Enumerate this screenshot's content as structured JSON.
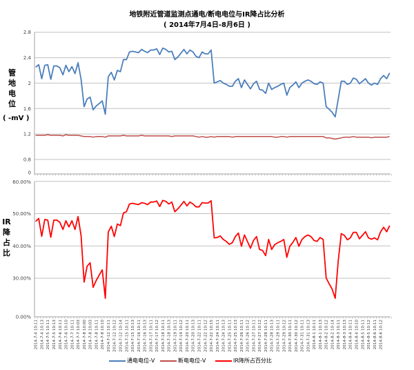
{
  "title": "地铁附近管道监测点通电/断电电位与IR降占比分析",
  "subtitle": "( 2014年7月4日-8月6日 )",
  "colors": {
    "on": "#4a7ebb",
    "off": "#be4b48",
    "ir": "#ff0000",
    "grid": "#c0c0c0"
  },
  "chart_data": [
    {
      "type": "line",
      "ylabel_main": "管地电位",
      "ylabel_unit": "( -mV )",
      "yticks": [
        "2.8",
        "2.4",
        "2",
        "1.6",
        "1.2",
        "0.8",
        "0"
      ],
      "ylim": [
        0,
        2.8
      ],
      "grid": true,
      "series": [
        {
          "name": "通电电位-V",
          "values": [
            2.25,
            2.29,
            2.07,
            2.28,
            2.29,
            2.06,
            2.27,
            2.27,
            2.24,
            2.13,
            2.28,
            2.18,
            2.26,
            2.15,
            2.32,
            2.06,
            1.63,
            1.75,
            1.78,
            1.58,
            1.64,
            1.68,
            1.72,
            1.51,
            2.1,
            2.17,
            2.05,
            2.2,
            2.18,
            2.37,
            2.37,
            2.49,
            2.5,
            2.49,
            2.48,
            2.53,
            2.5,
            2.48,
            2.52,
            2.52,
            2.54,
            2.45,
            2.55,
            2.53,
            2.49,
            2.5,
            2.37,
            2.41,
            2.47,
            2.53,
            2.46,
            2.52,
            2.49,
            2.42,
            2.4,
            2.49,
            2.46,
            2.46,
            2.52,
            2.0,
            2.02,
            2.04,
            2.0,
            1.98,
            1.95,
            1.95,
            2.03,
            2.07,
            1.93,
            2.05,
            1.98,
            1.91,
            1.99,
            2.03,
            1.9,
            1.89,
            1.84,
            2.0,
            1.9,
            1.93,
            1.95,
            1.98,
            2.0,
            1.81,
            1.93,
            1.97,
            2.02,
            1.93,
            2.0,
            2.03,
            2.05,
            2.03,
            1.99,
            1.98,
            2.02,
            2.0,
            1.63,
            1.59,
            1.54,
            1.47,
            1.75,
            2.03,
            2.03,
            1.98,
            2.0,
            2.08,
            2.06,
            1.99,
            2.03,
            2.07,
            2.0,
            1.97,
            2.0,
            1.98,
            2.07,
            2.12,
            2.07,
            2.16
          ]
        },
        {
          "name": "断电电位-V",
          "values": [
            1.18,
            1.18,
            1.18,
            1.18,
            1.19,
            1.18,
            1.18,
            1.18,
            1.18,
            1.17,
            1.19,
            1.18,
            1.18,
            1.18,
            1.18,
            1.17,
            1.16,
            1.16,
            1.16,
            1.15,
            1.16,
            1.16,
            1.16,
            1.15,
            1.17,
            1.17,
            1.17,
            1.17,
            1.17,
            1.18,
            1.17,
            1.17,
            1.17,
            1.17,
            1.17,
            1.18,
            1.17,
            1.17,
            1.17,
            1.17,
            1.17,
            1.17,
            1.17,
            1.17,
            1.17,
            1.16,
            1.17,
            1.17,
            1.17,
            1.17,
            1.17,
            1.17,
            1.17,
            1.16,
            1.15,
            1.16,
            1.15,
            1.15,
            1.16,
            1.15,
            1.16,
            1.16,
            1.16,
            1.16,
            1.16,
            1.15,
            1.16,
            1.16,
            1.16,
            1.16,
            1.16,
            1.16,
            1.16,
            1.16,
            1.16,
            1.16,
            1.16,
            1.16,
            1.16,
            1.15,
            1.15,
            1.16,
            1.16,
            1.15,
            1.16,
            1.16,
            1.16,
            1.16,
            1.16,
            1.16,
            1.16,
            1.16,
            1.16,
            1.16,
            1.16,
            1.16,
            1.14,
            1.14,
            1.13,
            1.12,
            1.13,
            1.14,
            1.15,
            1.15,
            1.15,
            1.16,
            1.15,
            1.15,
            1.15,
            1.15,
            1.15,
            1.14,
            1.15,
            1.15,
            1.15,
            1.15,
            1.15,
            1.16
          ]
        }
      ]
    },
    {
      "type": "line",
      "ylabel": "IR降占比",
      "yticks": [
        "60.00%",
        "50.00%",
        "40.00%",
        "30.00%",
        "0.00%"
      ],
      "ylim": [
        0,
        60
      ],
      "grid": true,
      "series": [
        {
          "name": "IR降所占百分比",
          "values": [
            47.6,
            48.5,
            43.0,
            48.2,
            48.0,
            42.7,
            48.0,
            48.0,
            47.3,
            45.1,
            47.8,
            45.9,
            47.8,
            45.1,
            49.1,
            43.2,
            28.8,
            33.7,
            34.8,
            27.2,
            29.3,
            31.0,
            32.6,
            23.8,
            44.3,
            46.1,
            42.9,
            46.8,
            46.3,
            50.2,
            50.6,
            53.0,
            53.2,
            53.0,
            52.8,
            53.4,
            53.2,
            52.8,
            53.6,
            53.6,
            53.9,
            52.2,
            54.1,
            53.8,
            53.0,
            53.6,
            50.6,
            51.5,
            52.6,
            53.8,
            52.4,
            53.6,
            53.0,
            52.1,
            52.1,
            53.4,
            53.3,
            53.3,
            54.0,
            42.5,
            42.6,
            43.1,
            42.0,
            41.4,
            40.5,
            41.0,
            42.9,
            44.0,
            39.9,
            43.4,
            41.4,
            39.3,
            41.7,
            42.9,
            38.9,
            38.6,
            37.0,
            42.0,
            38.9,
            40.4,
            41.0,
            41.4,
            42.0,
            36.5,
            39.9,
            41.1,
            42.6,
            39.9,
            42.0,
            42.9,
            43.4,
            42.9,
            41.7,
            41.4,
            42.6,
            42.0,
            30.1,
            28.3,
            26.6,
            23.8,
            35.4,
            43.8,
            43.3,
            41.9,
            42.5,
            44.2,
            44.2,
            42.2,
            43.3,
            44.4,
            42.5,
            42.1,
            42.5,
            41.9,
            44.4,
            45.8,
            44.4,
            46.3
          ]
        }
      ]
    }
  ],
  "x_labels": [
    "2014-7-4 10:11",
    "2014-7-4 10:13",
    "2014-7-5 10:11",
    "2014-7-5 10:13",
    "2014-7-6 10:11",
    "2014-7-6 10:10",
    "2014-7-7 10:11",
    "2014-7-7 10:03",
    "2014-7-8 10:00",
    "2014-7-8 10:03",
    "2014-7-8 10:11",
    "2014-7-8 10:10",
    "2014-7-12 10:11",
    "2014-7-12 10:12",
    "2014-7-12 10:14",
    "2014-7-15 10:11",
    "2014-7-15 10:13",
    "2014-7-16 10:11",
    "2014-7-16 10:13",
    "2014-7-17 10:11",
    "2014-7-17 10:12",
    "2014-7-18 10:11",
    "2014-7-18 10:13",
    "2014-7-19 10:11",
    "2014-7-19 10:12",
    "2014-7-20 10:11",
    "2014-7-20 10:13",
    "2014-7-22 10:11",
    "2014-7-22 10:12",
    "2014-7-22 10:15",
    "2014-7-24 10:11",
    "2014-7-24 10:13",
    "2014-7-25 10:11",
    "2014-7-25 10:13",
    "2014-7-26 10:11",
    "2014-7-26 10:12",
    "2014-7-27 10:11",
    "2014-7-27 10:12",
    "2014-7-28 10:11",
    "2014-7-28 10:13",
    "2014-7-29 10:11",
    "2014-7-29 10:12",
    "2014-7-30 10:11",
    "2014-7-30 10:12",
    "2014-7-31 10:11",
    "2014-7-31 10:13",
    "2014-8-1 10:11",
    "2014-8-1 10:13",
    "2014-8-2 10:12",
    "2014-8-2 10:14",
    "2014-8-3 10:11",
    "2014-8-3 10:13",
    "2014-8-4 10:11",
    "2014-8-4 10:10",
    "2014-8-5 10:11",
    "2014-8-5 10:12",
    "2014-8-6 10:11",
    "2014-8-6 10:12"
  ],
  "legend": [
    "通电电位-V",
    "断电电位-V",
    "IR降所占百分比"
  ]
}
